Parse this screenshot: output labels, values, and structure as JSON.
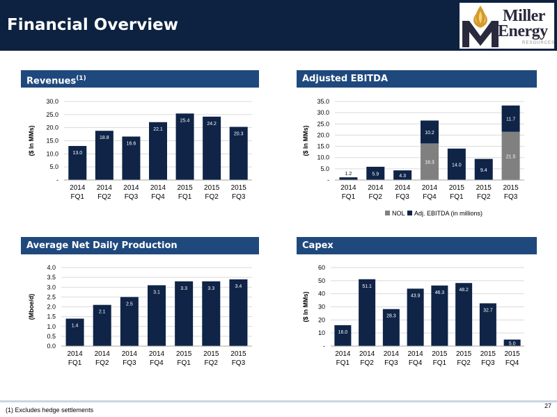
{
  "title": "Financial Overview",
  "logo": {
    "line1": "Miller",
    "line2": "Energy",
    "sub": "RESOURCES"
  },
  "sections": {
    "revenues": {
      "label": "Revenues",
      "sup": "(1)"
    },
    "ebitda": {
      "label": "Adjusted EBITDA"
    },
    "production": {
      "label": "Average Net Daily Production"
    },
    "capex": {
      "label": "Capex"
    }
  },
  "footnote": "(1)   Excludes hedge settlements",
  "page_number": "27",
  "colors": {
    "navy": "#0d2240",
    "bar": "#0f2447",
    "nol": "#808080",
    "section": "#1f497d"
  },
  "chart_data": [
    {
      "id": "revenues",
      "type": "bar",
      "categories": [
        "2014 FQ1",
        "2014 FQ2",
        "2014 FQ3",
        "2014 FQ4",
        "2015 FQ1",
        "2015 FQ2",
        "2015 FQ3"
      ],
      "values": [
        13.0,
        18.8,
        16.6,
        22.1,
        25.4,
        24.2,
        20.3
      ],
      "labels": [
        "13.0",
        "18.8",
        "16.6",
        "22.1",
        "25.4",
        "24.2",
        "20.3"
      ],
      "ylabel": "($ In MMs)",
      "ylim": [
        0,
        30
      ],
      "yticks": [
        "-",
        "5.0",
        "10.0",
        "15.0",
        "20.0",
        "25.0",
        "30.0"
      ],
      "gridlines": true
    },
    {
      "id": "ebitda",
      "type": "bar",
      "stacked": true,
      "categories": [
        "2014 FQ1",
        "2014 FQ2",
        "2014 FQ3",
        "2014 FQ4",
        "2015 FQ1",
        "2015 FQ2",
        "2015 FQ3"
      ],
      "series": [
        {
          "name": "NOL",
          "values": [
            0,
            0,
            0,
            16.3,
            0,
            0,
            21.5
          ],
          "labels": [
            "",
            "",
            "",
            "16.3",
            "",
            "",
            "21.5"
          ]
        },
        {
          "name": "Adj. EBITDA (in millions)",
          "values": [
            1.2,
            5.9,
            4.3,
            10.2,
            14.0,
            9.4,
            11.7
          ],
          "labels": [
            "1.2",
            "5.9",
            "4.3",
            "10.2",
            "14.0",
            "9.4",
            "11.7"
          ]
        }
      ],
      "ylabel": "($ In MMs)",
      "ylim": [
        0,
        35
      ],
      "yticks": [
        "-",
        "5.0",
        "10.0",
        "15.0",
        "20.0",
        "25.0",
        "30.0",
        "35.0"
      ],
      "legend_position": "bottom",
      "gridlines": true
    },
    {
      "id": "production",
      "type": "bar",
      "categories": [
        "2014 FQ1",
        "2014 FQ2",
        "2014 FQ3",
        "2014 FQ4",
        "2015 FQ1",
        "2015 FQ2",
        "2015 FQ3"
      ],
      "values": [
        1.4,
        2.1,
        2.5,
        3.1,
        3.3,
        3.3,
        3.4
      ],
      "labels": [
        "1.4",
        "2.1",
        "2.5",
        "3.1",
        "3.3",
        "3.3",
        "3.4"
      ],
      "ylabel": "(Mboe/d)",
      "ylim": [
        0,
        4
      ],
      "yticks": [
        "0.0",
        "0.5",
        "1.0",
        "1.5",
        "2.0",
        "2.5",
        "3.0",
        "3.5",
        "4.0"
      ],
      "gridlines": true
    },
    {
      "id": "capex",
      "type": "bar",
      "categories": [
        "2014 FQ1",
        "2014 FQ2",
        "2014 FQ3",
        "2014 FQ4",
        "2015 FQ1",
        "2015 FQ2",
        "2015 FQ3",
        "2015 FQ4"
      ],
      "values": [
        16.0,
        51.1,
        28.3,
        43.9,
        46.3,
        48.2,
        32.7,
        5.0
      ],
      "labels": [
        "16.0",
        "51.1",
        "28.3",
        "43.9",
        "46.3",
        "48.2",
        "32.7",
        "5.0"
      ],
      "ylabel": "($ In MMs)",
      "ylim": [
        0,
        60
      ],
      "yticks": [
        "-",
        "10",
        "20",
        "30",
        "40",
        "50",
        "60"
      ],
      "gridlines": true
    }
  ]
}
